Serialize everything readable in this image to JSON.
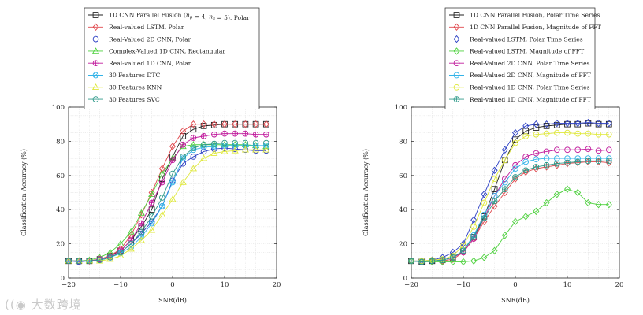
{
  "chart_data": [
    {
      "type": "line",
      "title": "",
      "xlabel": "SNR(dB)",
      "ylabel": "Classification Accuracy (%)",
      "xlim": [
        -20,
        20
      ],
      "ylim": [
        0,
        100
      ],
      "xticks": [
        -20,
        -10,
        0,
        10,
        20
      ],
      "yticks": [
        0,
        20,
        40,
        60,
        80,
        100
      ],
      "grid": true,
      "legend_position": "top-center",
      "x": [
        -20,
        -18,
        -16,
        -14,
        -12,
        -10,
        -8,
        -6,
        -4,
        -2,
        0,
        2,
        4,
        6,
        8,
        10,
        12,
        14,
        16,
        18
      ],
      "series": [
        {
          "name": "1D CNN Parallel Fusion ($n_p = 4$, $n_s = 5$), Polar",
          "legend_label": "1D CNN Parallel Fusion (n_p = 4, n_s = 5), Polar",
          "color": "#222222",
          "marker": "square",
          "values": [
            10,
            10,
            10,
            11,
            13,
            16,
            22,
            30,
            40,
            58,
            71,
            83,
            87,
            89,
            89.5,
            90,
            90,
            90,
            90,
            90
          ]
        },
        {
          "name": "Real-valued LSTM, Polar",
          "color": "#e0474c",
          "marker": "diamond",
          "values": [
            10,
            10,
            10,
            11,
            13,
            17,
            25,
            37,
            50,
            64,
            77,
            86,
            90,
            90,
            90,
            90,
            90,
            90,
            90,
            90
          ]
        },
        {
          "name": "Real-Valued 2D CNN, Polar",
          "color": "#2b3fc4",
          "marker": "circle",
          "values": [
            10,
            9.5,
            10,
            10.5,
            12,
            15,
            20,
            26,
            33,
            42,
            57,
            67,
            71,
            74,
            75.5,
            76,
            75.5,
            75,
            74.5,
            74.5
          ]
        },
        {
          "name": "Complex-Valued 1D CNN, Rectangular",
          "color": "#4ed13e",
          "marker": "triangle",
          "values": [
            10,
            10,
            10.5,
            12,
            15,
            20,
            27,
            38,
            49,
            61,
            70,
            77,
            78,
            78,
            78,
            78,
            78,
            78,
            77.5,
            77
          ]
        },
        {
          "name": "Real-valued 1D CNN, Polar",
          "color": "#c01a9c",
          "marker": "circle-plus",
          "values": [
            10,
            10,
            10,
            11,
            12.5,
            16,
            22,
            32,
            44,
            56,
            69,
            78,
            82,
            83,
            84,
            84.5,
            84.5,
            84.5,
            84,
            84
          ]
        },
        {
          "name": "30 Features DTC",
          "color": "#33b3e8",
          "marker": "circle-x",
          "values": [
            10,
            10,
            10,
            10.5,
            12,
            14.5,
            18,
            24,
            32,
            42,
            56,
            70,
            75,
            76.5,
            77,
            77.5,
            77.5,
            77.5,
            77.5,
            77.5
          ]
        },
        {
          "name": "30 Features KNN",
          "color": "#dfe83a",
          "marker": "triangle",
          "values": [
            10,
            10,
            10,
            10,
            11,
            13,
            17,
            22,
            28,
            37,
            46,
            56,
            64,
            70,
            73,
            74,
            74.5,
            75,
            75,
            75
          ]
        },
        {
          "name": "30 Features SVC",
          "color": "#2f9a8a",
          "marker": "circle",
          "values": [
            10,
            10,
            10,
            10.5,
            12,
            15,
            20,
            27,
            36,
            47,
            61,
            71,
            76,
            78,
            78.5,
            79,
            79,
            79,
            79,
            79
          ]
        }
      ]
    },
    {
      "type": "line",
      "title": "",
      "xlabel": "SNR(dB)",
      "ylabel": "Classification Accuracy (%)",
      "xlim": [
        -20,
        20
      ],
      "ylim": [
        0,
        100
      ],
      "xticks": [
        -20,
        -10,
        0,
        10,
        20
      ],
      "yticks": [
        0,
        20,
        40,
        60,
        80,
        100
      ],
      "grid": true,
      "legend_position": "top-center",
      "x": [
        -20,
        -18,
        -16,
        -14,
        -12,
        -10,
        -8,
        -6,
        -4,
        -2,
        0,
        2,
        4,
        6,
        8,
        10,
        12,
        14,
        16,
        18
      ],
      "series": [
        {
          "name": "1D CNN Parallel Fusion, Polar Time Series",
          "color": "#222222",
          "marker": "square",
          "values": [
            10,
            9.5,
            10,
            10.5,
            12,
            16,
            24,
            36,
            52,
            69,
            81,
            86,
            88,
            89,
            89.5,
            90,
            90,
            90.5,
            90,
            90
          ]
        },
        {
          "name": "1D CNN Parallel Fusion, Magnitude of FFT",
          "color": "#e0474c",
          "marker": "diamond",
          "values": [
            10,
            9.5,
            10,
            10,
            11,
            15,
            23,
            33,
            42,
            50,
            58,
            62,
            64,
            65,
            66,
            67,
            67.5,
            68,
            68,
            67.5
          ]
        },
        {
          "name": "Real-valued LSTM, Polar Time Series",
          "color": "#2b3fc4",
          "marker": "diamond",
          "values": [
            10,
            10,
            10.5,
            12,
            15,
            20,
            34,
            49,
            63,
            75,
            85,
            89,
            90,
            90,
            90.5,
            90.5,
            90.5,
            91,
            90.5,
            90.5
          ]
        },
        {
          "name": "Real-valued LSTM, Magnitude of FFT",
          "color": "#4ed13e",
          "marker": "diamond",
          "values": [
            10,
            9.5,
            9.5,
            9.5,
            9.5,
            9.5,
            10,
            12,
            16,
            25,
            33,
            36,
            39,
            44,
            49,
            52,
            50,
            44,
            43,
            43
          ]
        },
        {
          "name": "Real-Valued 2D CNN, Polar Time Series",
          "color": "#c01a9c",
          "marker": "circle",
          "values": [
            10,
            9.5,
            10,
            10.5,
            12,
            15,
            23,
            35,
            48,
            58,
            66,
            71,
            73,
            74,
            75,
            75,
            75,
            75.5,
            74.5,
            75
          ]
        },
        {
          "name": "Real-Valued 2D CNN, Magnitude of FFT",
          "color": "#33b3e8",
          "marker": "circle",
          "values": [
            10,
            9.5,
            10,
            10.5,
            12,
            16,
            25,
            37,
            48,
            56,
            64,
            68,
            69.5,
            70,
            70,
            70,
            70,
            70,
            70,
            70
          ]
        },
        {
          "name": "Real-valued 1D CNN, Polar Time Series",
          "color": "#dfe83a",
          "marker": "circle",
          "values": [
            10,
            10,
            10.5,
            11,
            13,
            19,
            30,
            44,
            58,
            69,
            79,
            83,
            84,
            84.5,
            85,
            85,
            84.5,
            84.5,
            84,
            84
          ]
        },
        {
          "name": "Real-valued 1D CNN, Magnitude of FFT",
          "color": "#2f9a8a",
          "marker": "circle-plus",
          "values": [
            10,
            9.5,
            10,
            10.5,
            12,
            16,
            24,
            35,
            45,
            52,
            59,
            63,
            65,
            66,
            67,
            67.5,
            68,
            68.5,
            68.5,
            68.5
          ]
        }
      ]
    }
  ],
  "watermark": "大数跨境"
}
